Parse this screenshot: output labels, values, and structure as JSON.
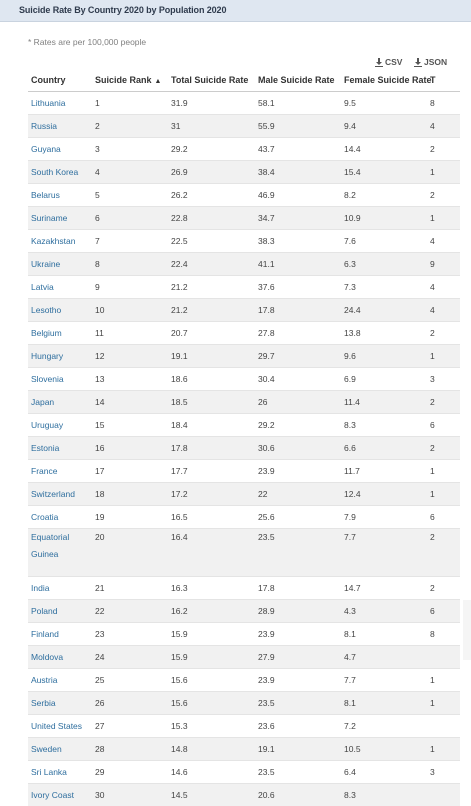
{
  "title": "Suicide Rate By Country 2020 by Population 2020",
  "note": "* Rates are per 100,000 people",
  "downloads": {
    "csv": "CSV",
    "json": "JSON"
  },
  "columns": [
    "Country",
    "Suicide Rank",
    "Total Suicide Rate",
    "Male Suicide Rate",
    "Female Suicide Rate",
    "T"
  ],
  "sort_arrow": "▲",
  "rows": [
    {
      "country": "Lithuania",
      "rank": "1",
      "total": "31.9",
      "male": "58.1",
      "female": "9.5",
      "t": "8"
    },
    {
      "country": "Russia",
      "rank": "2",
      "total": "31",
      "male": "55.9",
      "female": "9.4",
      "t": "4"
    },
    {
      "country": "Guyana",
      "rank": "3",
      "total": "29.2",
      "male": "43.7",
      "female": "14.4",
      "t": "2"
    },
    {
      "country": "South Korea",
      "rank": "4",
      "total": "26.9",
      "male": "38.4",
      "female": "15.4",
      "t": "1"
    },
    {
      "country": "Belarus",
      "rank": "5",
      "total": "26.2",
      "male": "46.9",
      "female": "8.2",
      "t": "2"
    },
    {
      "country": "Suriname",
      "rank": "6",
      "total": "22.8",
      "male": "34.7",
      "female": "10.9",
      "t": "1"
    },
    {
      "country": "Kazakhstan",
      "rank": "7",
      "total": "22.5",
      "male": "38.3",
      "female": "7.6",
      "t": "4"
    },
    {
      "country": "Ukraine",
      "rank": "8",
      "total": "22.4",
      "male": "41.1",
      "female": "6.3",
      "t": "9"
    },
    {
      "country": "Latvia",
      "rank": "9",
      "total": "21.2",
      "male": "37.6",
      "female": "7.3",
      "t": "4"
    },
    {
      "country": "Lesotho",
      "rank": "10",
      "total": "21.2",
      "male": "17.8",
      "female": "24.4",
      "t": "4"
    },
    {
      "country": "Belgium",
      "rank": "11",
      "total": "20.7",
      "male": "27.8",
      "female": "13.8",
      "t": "2"
    },
    {
      "country": "Hungary",
      "rank": "12",
      "total": "19.1",
      "male": "29.7",
      "female": "9.6",
      "t": "1"
    },
    {
      "country": "Slovenia",
      "rank": "13",
      "total": "18.6",
      "male": "30.4",
      "female": "6.9",
      "t": "3"
    },
    {
      "country": "Japan",
      "rank": "14",
      "total": "18.5",
      "male": "26",
      "female": "11.4",
      "t": "2"
    },
    {
      "country": "Uruguay",
      "rank": "15",
      "total": "18.4",
      "male": "29.2",
      "female": "8.3",
      "t": "6"
    },
    {
      "country": "Estonia",
      "rank": "16",
      "total": "17.8",
      "male": "30.6",
      "female": "6.6",
      "t": "2"
    },
    {
      "country": "France",
      "rank": "17",
      "total": "17.7",
      "male": "23.9",
      "female": "11.7",
      "t": "1"
    },
    {
      "country": "Switzerland",
      "rank": "18",
      "total": "17.2",
      "male": "22",
      "female": "12.4",
      "t": "1"
    },
    {
      "country": "Croatia",
      "rank": "19",
      "total": "16.5",
      "male": "25.6",
      "female": "7.9",
      "t": "6"
    },
    {
      "country": "Equatorial Guinea",
      "rank": "20",
      "total": "16.4",
      "male": "23.5",
      "female": "7.7",
      "t": "2",
      "tall": true
    },
    {
      "country": "India",
      "rank": "21",
      "total": "16.3",
      "male": "17.8",
      "female": "14.7",
      "t": "2"
    },
    {
      "country": "Poland",
      "rank": "22",
      "total": "16.2",
      "male": "28.9",
      "female": "4.3",
      "t": "6"
    },
    {
      "country": "Finland",
      "rank": "23",
      "total": "15.9",
      "male": "23.9",
      "female": "8.1",
      "t": "8"
    },
    {
      "country": "Moldova",
      "rank": "24",
      "total": "15.9",
      "male": "27.9",
      "female": "4.7",
      "t": ""
    },
    {
      "country": "Austria",
      "rank": "25",
      "total": "15.6",
      "male": "23.9",
      "female": "7.7",
      "t": "1"
    },
    {
      "country": "Serbia",
      "rank": "26",
      "total": "15.6",
      "male": "23.5",
      "female": "8.1",
      "t": "1"
    },
    {
      "country": "United States",
      "rank": "27",
      "total": "15.3",
      "male": "23.6",
      "female": "7.2",
      "t": ""
    },
    {
      "country": "Sweden",
      "rank": "28",
      "total": "14.8",
      "male": "19.1",
      "female": "10.5",
      "t": "1"
    },
    {
      "country": "Sri Lanka",
      "rank": "29",
      "total": "14.6",
      "male": "23.5",
      "female": "6.4",
      "t": "3"
    },
    {
      "country": "Ivory Coast",
      "rank": "30",
      "total": "14.5",
      "male": "20.6",
      "female": "8.3",
      "t": ""
    }
  ]
}
